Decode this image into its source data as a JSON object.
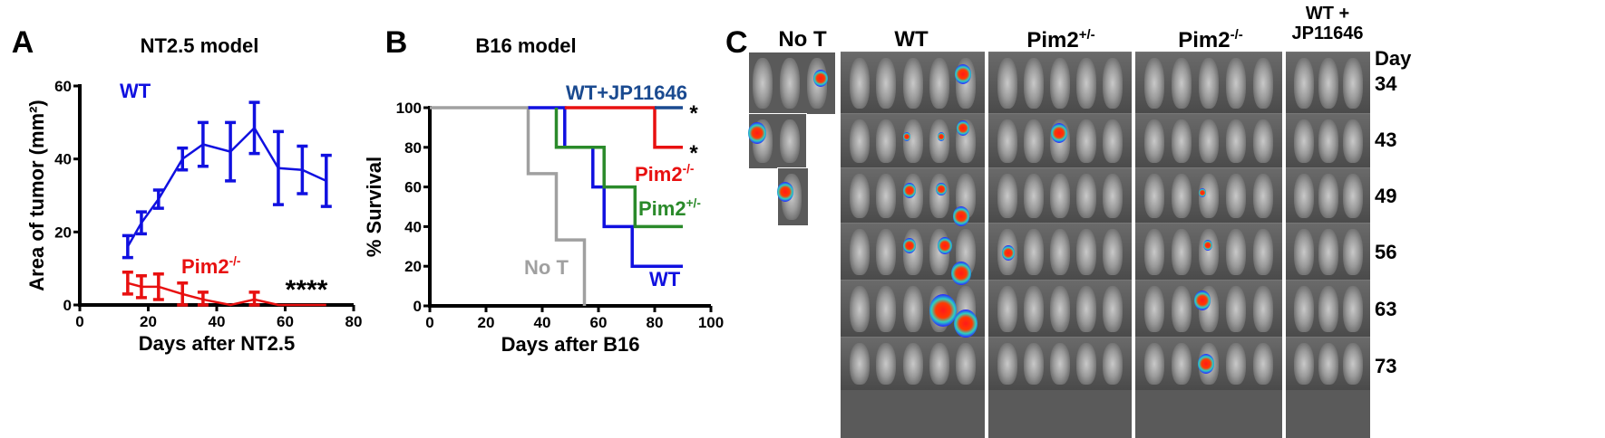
{
  "chart_data": [
    {
      "panel": "A",
      "type": "line",
      "title": "NT2.5 model",
      "xlabel": "Days after NT2.5",
      "ylabel": "Area of tumor (mm²)",
      "xlim": [
        0,
        80
      ],
      "ylim": [
        0,
        60
      ],
      "xticks": [
        "0",
        "20",
        "40",
        "60",
        "80"
      ],
      "yticks": [
        "0",
        "20",
        "40",
        "60"
      ],
      "x": [
        14,
        18,
        23,
        30,
        36,
        44,
        51,
        58,
        65,
        72
      ],
      "series": [
        {
          "name": "WT",
          "color": "#1010e0",
          "values": [
            16,
            22.5,
            29,
            40,
            44,
            42,
            48.5,
            37.5,
            37,
            34
          ],
          "error": [
            3,
            3,
            2.5,
            3,
            6,
            8,
            7,
            10,
            6.5,
            7
          ]
        },
        {
          "name": "Pim2",
          "superscript": "-/-",
          "color": "#e81010",
          "values": [
            6,
            5,
            5,
            3,
            1.5,
            0,
            1.5,
            0,
            0,
            0
          ],
          "error": [
            3,
            3,
            3.5,
            3,
            2,
            0,
            2,
            0,
            0,
            0
          ]
        }
      ],
      "annotation": "****"
    },
    {
      "panel": "B",
      "type": "line",
      "subtype": "survival-step",
      "title": "B16  model",
      "xlabel": "Days after B16",
      "ylabel": "% Survival",
      "xlim": [
        0,
        100
      ],
      "ylim": [
        0,
        100
      ],
      "xticks": [
        "0",
        "20",
        "40",
        "60",
        "80",
        "100"
      ],
      "yticks": [
        "0",
        "20",
        "40",
        "60",
        "80",
        "100"
      ],
      "series": [
        {
          "name": "No T",
          "color": "#a0a0a0",
          "steps": [
            [
              0,
              100
            ],
            [
              35,
              66.7
            ],
            [
              45,
              33.3
            ],
            [
              55,
              0
            ]
          ],
          "end": 55
        },
        {
          "name": "WT",
          "color": "#1010e0",
          "steps": [
            [
              35,
              100
            ],
            [
              48,
              80
            ],
            [
              58,
              60
            ],
            [
              62,
              40
            ],
            [
              72,
              20
            ]
          ],
          "end": 90
        },
        {
          "name": "Pim2",
          "superscript": "+/-",
          "color": "#2a8a2a",
          "steps": [
            [
              45,
              100
            ],
            [
              45,
              80
            ],
            [
              62,
              60
            ],
            [
              73,
              40
            ]
          ],
          "end": 90
        },
        {
          "name": "Pim2",
          "superscript": "-/-",
          "color": "#e81010",
          "steps": [
            [
              48,
              100
            ],
            [
              80,
              80
            ]
          ],
          "end": 90,
          "annotation": "*"
        },
        {
          "name": "WT+JP11646",
          "color": "#1a4a90",
          "steps": [
            [
              80,
              100
            ]
          ],
          "end": 90,
          "annotation": "*"
        }
      ]
    }
  ],
  "panelA": {
    "letter": "A"
  },
  "panelB": {
    "letter": "B"
  },
  "panelC": {
    "letter": "C",
    "groups": [
      {
        "label": "No T"
      },
      {
        "label": "WT"
      },
      {
        "label": "Pim2",
        "sup": "+/-"
      },
      {
        "label": "Pim2",
        "sup": "-/-"
      },
      {
        "label": "WT +",
        "label2": "JP11646"
      }
    ],
    "day_label": "Day",
    "days": [
      "34",
      "43",
      "49",
      "56",
      "63",
      "73"
    ]
  }
}
